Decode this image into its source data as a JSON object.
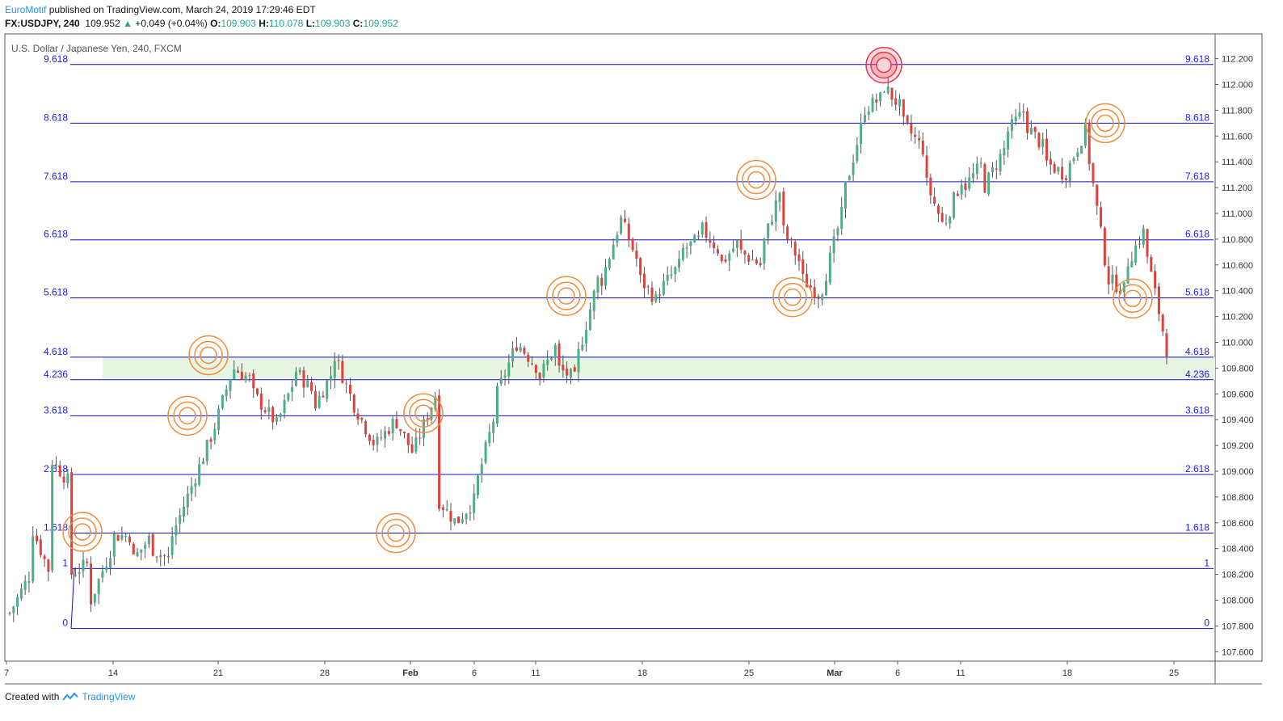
{
  "header": {
    "author": "EuroMotif",
    "published": "published on TradingView.com, March 24, 2019 17:29:46 EDT"
  },
  "symbol_line": {
    "symbol": "FX:USDJPY, 240",
    "last": "109.952",
    "arrow": "▲",
    "change": "+0.049 (+0.04%)",
    "o_label": "O:",
    "o_value": "109.903",
    "h_label": "H:",
    "h_value": "110.078",
    "l_label": "L:",
    "l_value": "109.903",
    "c_label": "C:",
    "c_value": "109.952"
  },
  "footer": {
    "created_with": "Created with",
    "brand": "TradingView"
  },
  "colors": {
    "up": "#4caf8a",
    "down": "#e0413a",
    "fib_line": "#1010d0",
    "fib_label": "#1a1aff",
    "zone": "#e8f5e2",
    "ring": "#f28c3c",
    "top_ring": "#e53950"
  },
  "chart_data": {
    "type": "candlestick",
    "title": "U.S. Dollar / Japanese Yen, 240, FXCM",
    "ylim": [
      107.5,
      112.4
    ],
    "y_ticks": [
      "112.200",
      "112.000",
      "111.800",
      "111.600",
      "111.400",
      "111.200",
      "111.000",
      "110.800",
      "110.600",
      "110.400",
      "110.200",
      "110.000",
      "109.800",
      "109.600",
      "109.400",
      "109.200",
      "109.000",
      "108.800",
      "108.600",
      "108.400",
      "108.200",
      "108.000",
      "107.800",
      "107.600"
    ],
    "x_ticks": [
      "7",
      "14",
      "21",
      "28",
      "Feb",
      "6",
      "11",
      "18",
      "25",
      "Mar",
      "6",
      "11",
      "18",
      "25"
    ],
    "fib_levels": [
      {
        "label": "9.618",
        "value": 112.155
      },
      {
        "label": "8.618",
        "value": 111.7
      },
      {
        "label": "7.618",
        "value": 111.245
      },
      {
        "label": "6.618",
        "value": 110.795
      },
      {
        "label": "5.618",
        "value": 110.345
      },
      {
        "label": "4.618",
        "value": 109.885
      },
      {
        "label": "4.236",
        "value": 109.71
      },
      {
        "label": "3.618",
        "value": 109.43
      },
      {
        "label": "2.618",
        "value": 108.975
      },
      {
        "label": "1.618",
        "value": 108.52
      },
      {
        "label": "1",
        "value": 108.245
      },
      {
        "label": "0",
        "value": 107.78
      }
    ],
    "zone": {
      "from": 109.71,
      "to": 109.885
    },
    "touch_points": [
      {
        "date": "Jan 10",
        "price": 108.53
      },
      {
        "date": "Jan 19",
        "price": 109.43
      },
      {
        "date": "Jan 20",
        "price": 109.9
      },
      {
        "date": "Jan 31",
        "price": 108.52
      },
      {
        "date": "Feb 1",
        "price": 109.45
      },
      {
        "date": "Feb 12",
        "price": 110.36
      },
      {
        "date": "Feb 25",
        "price": 111.26
      },
      {
        "date": "Feb 27",
        "price": 110.35
      },
      {
        "date": "Mar 5",
        "price": 112.15,
        "highlight": true
      },
      {
        "date": "Mar 19",
        "price": 111.7
      },
      {
        "date": "Mar 21",
        "price": 110.34
      }
    ],
    "path_points": [
      [
        107.9,
        108.2
      ],
      [
        108.6,
        108.2
      ],
      [
        109.1,
        108.9
      ],
      [
        108.2,
        108.3
      ],
      [
        108.0,
        108.4
      ],
      [
        108.5,
        108.5
      ],
      [
        108.3,
        108.5
      ],
      [
        108.4,
        108.3
      ],
      [
        108.5,
        108.9
      ],
      [
        108.9,
        109.3
      ],
      [
        109.3,
        109.8
      ],
      [
        109.8,
        109.7
      ],
      [
        109.6,
        109.4
      ],
      [
        109.3,
        109.7
      ],
      [
        109.8,
        109.6
      ],
      [
        109.5,
        109.8
      ],
      [
        109.9,
        109.5
      ],
      [
        109.5,
        109.2
      ],
      [
        109.2,
        109.4
      ],
      [
        109.4,
        109.1
      ],
      [
        109.2,
        109.6
      ],
      [
        108.8,
        108.6
      ],
      [
        108.6,
        108.8
      ],
      [
        108.9,
        109.5
      ],
      [
        109.6,
        110.0
      ],
      [
        110.0,
        109.8
      ],
      [
        109.7,
        110.0
      ],
      [
        109.8,
        109.7
      ],
      [
        109.9,
        110.5
      ],
      [
        110.4,
        110.9
      ],
      [
        111.0,
        110.6
      ],
      [
        110.5,
        110.3
      ],
      [
        110.4,
        110.6
      ],
      [
        110.7,
        110.8
      ],
      [
        110.9,
        110.7
      ],
      [
        110.6,
        110.8
      ],
      [
        110.7,
        110.6
      ],
      [
        110.7,
        111.2
      ],
      [
        110.9,
        110.6
      ],
      [
        110.5,
        110.35
      ],
      [
        110.4,
        111.0
      ],
      [
        111.1,
        111.7
      ],
      [
        111.8,
        111.9
      ],
      [
        112.0,
        111.8
      ],
      [
        111.7,
        111.5
      ],
      [
        111.3,
        110.9
      ],
      [
        110.9,
        111.3
      ],
      [
        111.2,
        111.4
      ],
      [
        111.2,
        111.5
      ],
      [
        111.6,
        111.8
      ],
      [
        111.7,
        111.5
      ],
      [
        111.4,
        111.3
      ],
      [
        111.3,
        111.65
      ],
      [
        111.6,
        110.6
      ],
      [
        110.5,
        110.4
      ],
      [
        110.6,
        110.9
      ],
      [
        110.7,
        109.95
      ]
    ]
  }
}
